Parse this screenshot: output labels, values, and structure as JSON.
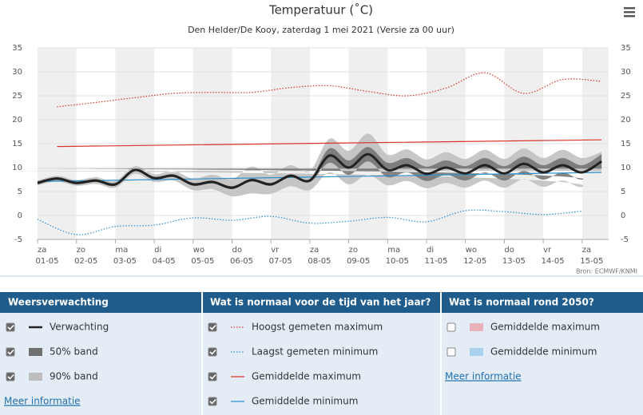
{
  "chart_data": {
    "type": "line",
    "title": "Temperatuur (˚C)",
    "subtitle": "Den Helder/De Kooy, zaterdag 1 mei 2021 (Versie za 00 uur)",
    "source": "Bron: ECMWF/KNMI",
    "weekdays": [
      "za",
      "zo",
      "ma",
      "di",
      "wo",
      "do",
      "vr",
      "za",
      "zo",
      "ma",
      "di",
      "wo",
      "do",
      "vr",
      "za"
    ],
    "categories": [
      "01-05",
      "02-05",
      "03-05",
      "04-05",
      "05-05",
      "06-05",
      "07-05",
      "08-05",
      "09-05",
      "10-05",
      "11-05",
      "12-05",
      "13-05",
      "14-05",
      "15-05"
    ],
    "ylim": [
      -5,
      35
    ],
    "yticks": [
      -5,
      0,
      5,
      10,
      15,
      20,
      25,
      30,
      35
    ],
    "y2lim": [
      -5,
      35
    ],
    "y2ticks": [
      -5,
      0,
      5,
      10,
      15,
      20,
      25,
      30,
      35
    ],
    "x": [
      0,
      0.5,
      1,
      1.5,
      2,
      2.5,
      3,
      3.5,
      4,
      4.5,
      5,
      5.5,
      6,
      6.5,
      7,
      7.5,
      8,
      8.5,
      9,
      9.5,
      10,
      10.5,
      11,
      11.5,
      12,
      12.5,
      13,
      13.5,
      14,
      14.5
    ],
    "groups": [
      {
        "title": "Weersverwachting",
        "link": "Meer informatie",
        "series": [
          {
            "name": "Verwachting",
            "kind": "line",
            "color": "#222222",
            "dash": "solid",
            "checked": true,
            "values": [
              6.8,
              7.7,
              6.8,
              7.3,
              6.5,
              9.5,
              7.8,
              8.3,
              6.5,
              7.0,
              5.8,
              7.4,
              6.5,
              8.3,
              7.3,
              12.5,
              10.0,
              12.8,
              9.5,
              10.5,
              8.7,
              10.0,
              8.8,
              10.5,
              8.8,
              10.8,
              9.0,
              10.5,
              9.0,
              11.3
            ]
          },
          {
            "name": "50% band",
            "kind": "band",
            "color": "#707070",
            "checked": true,
            "low": [
              6.5,
              7.4,
              6.5,
              7.0,
              6.2,
              9.2,
              7.5,
              8.0,
              6.2,
              6.7,
              5.5,
              7.1,
              6.2,
              8.0,
              7.0,
              11.0,
              8.5,
              11.3,
              8.0,
              9.0,
              7.2,
              8.5,
              7.3,
              9.0,
              7.3,
              9.3,
              7.5,
              9.0,
              7.5,
              9.8
            ],
            "high": [
              7.1,
              8.0,
              7.1,
              7.6,
              6.8,
              9.8,
              8.1,
              8.6,
              6.8,
              7.3,
              6.1,
              7.7,
              6.8,
              8.6,
              7.6,
              14.0,
              11.5,
              14.3,
              11.0,
              12.0,
              10.2,
              11.5,
              10.3,
              12.0,
              10.3,
              12.3,
              10.5,
              12.0,
              10.5,
              12.8
            ]
          },
          {
            "name": "90% band",
            "kind": "band",
            "color": "#bdbdbd",
            "checked": true,
            "low": [
              6.3,
              7.1,
              6.2,
              6.6,
              5.8,
              8.7,
              7.0,
              7.3,
              5.3,
              5.5,
              4.0,
              4.6,
              4.5,
              6.1,
              5.3,
              9.0,
              6.5,
              8.5,
              6.3,
              7.2,
              5.7,
              6.8,
              5.8,
              7.3,
              5.8,
              7.6,
              6.0,
              7.3,
              6.0,
              9.3
            ],
            "high": [
              7.3,
              8.3,
              7.4,
              8.0,
              7.2,
              10.3,
              8.6,
              9.3,
              7.7,
              8.5,
              7.6,
              10.2,
              8.5,
              10.5,
              9.3,
              16.0,
              13.5,
              17.1,
              12.7,
              13.8,
              11.7,
              13.2,
              11.8,
              13.7,
              11.8,
              14.0,
              12.0,
              13.7,
              12.0,
              13.3
            ]
          }
        ]
      },
      {
        "title": "Wat is normaal voor de tijd van het jaar?",
        "series": [
          {
            "name": "Hoogst gemeten maximum",
            "kind": "line",
            "color": "#d9342b",
            "dash": "dotted",
            "checked": true,
            "x": [
              0.5,
              1.5,
              2.5,
              3.5,
              4.5,
              5.5,
              6.5,
              7.5,
              8.5,
              9.5,
              10.5,
              11.5,
              12.5,
              13.5,
              14.5
            ],
            "values": [
              22.7,
              23.6,
              24.6,
              25.5,
              25.7,
              25.7,
              26.7,
              27.1,
              25.9,
              25.0,
              26.6,
              29.8,
              25.5,
              28.4,
              28.0
            ]
          },
          {
            "name": "Laagst gemeten minimum",
            "kind": "line",
            "color": "#2b8fd0",
            "dash": "dotted",
            "checked": true,
            "x": [
              0,
              1,
              2,
              3,
              4,
              5,
              6,
              7,
              8,
              9,
              10,
              11,
              12,
              13,
              14
            ],
            "values": [
              -0.8,
              -4.0,
              -2.3,
              -2.0,
              -0.5,
              -1.0,
              -0.2,
              -1.6,
              -1.2,
              -0.4,
              -1.3,
              1.0,
              0.8,
              0.2,
              0.9
            ]
          },
          {
            "name": "Gemiddelde maximum",
            "kind": "line",
            "color": "#d9342b",
            "dash": "solid",
            "checked": true,
            "x": [
              0.5,
              14.5
            ],
            "values": [
              14.4,
              15.8
            ]
          },
          {
            "name": "Gemiddelde minimum",
            "kind": "line",
            "color": "#2b8fd0",
            "dash": "solid",
            "checked": true,
            "x": [
              0,
              14.5
            ],
            "values": [
              7.1,
              9.0
            ]
          }
        ]
      },
      {
        "title": "Wat is normaal rond 2050?",
        "link": "Meer informatie",
        "series": [
          {
            "name": "Gemiddelde maximum",
            "kind": "band",
            "color": "#eab3bb",
            "checked": false
          },
          {
            "name": "Gemiddelde minimum",
            "kind": "band",
            "color": "#a9d2ef",
            "checked": false
          }
        ]
      }
    ]
  }
}
